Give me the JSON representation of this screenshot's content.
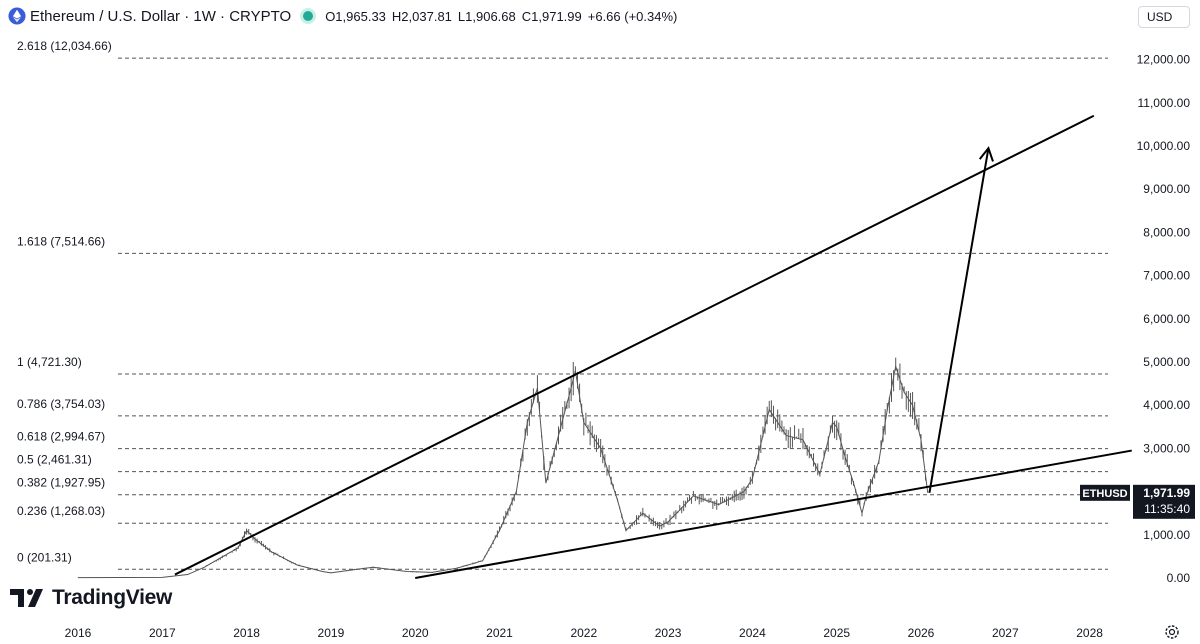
{
  "header": {
    "title": "Ethereum / U.S. Dollar · 1W · CRYPTO",
    "open": "O1,965.33",
    "high": "H2,037.81",
    "low": "L1,906.68",
    "close": "C1,971.99",
    "change": "+6.66 (+0.34%)",
    "currency": "USD",
    "icon": "ethereum-icon"
  },
  "watermark": {
    "text": "TradingView",
    "icon": "tradingview-logo"
  },
  "price_tag": {
    "symbol": "ETHUSD",
    "price": "1,971.99",
    "countdown": "11:35:40"
  },
  "colors": {
    "up": "#22ab94",
    "line": "#000000",
    "candle": "#555555",
    "price_tag_bg": "#131722"
  },
  "chart_data": {
    "type": "line",
    "title": "Ethereum / U.S. Dollar · 1W · CRYPTO",
    "xlabel": "",
    "ylabel": "",
    "x_ticks": [
      "2016",
      "2017",
      "2018",
      "2019",
      "2020",
      "2021",
      "2022",
      "2023",
      "2024",
      "2025",
      "2026",
      "2027",
      "2028"
    ],
    "y_ticks": [
      "0.00",
      "1,000.00",
      "2,000.00",
      "3,000.00",
      "4,000.00",
      "5,000.00",
      "6,000.00",
      "7,000.00",
      "8,000.00",
      "9,000.00",
      "10,000.00",
      "11,000.00",
      "12,000.00"
    ],
    "ylim": [
      0,
      12034.66
    ],
    "xlim": [
      2016.0,
      2028.3
    ],
    "fib_levels": [
      {
        "label": "2.618 (12,034.66)",
        "value": 12034.66
      },
      {
        "label": "1.618 (7,514.66)",
        "value": 7514.66
      },
      {
        "label": "1 (4,721.30)",
        "value": 4721.3
      },
      {
        "label": "0.786 (3,754.03)",
        "value": 3754.03
      },
      {
        "label": "0.618 (2,994.67)",
        "value": 2994.67
      },
      {
        "label": "0.5 (2,461.31)",
        "value": 2461.31
      },
      {
        "label": "0.382 (1,927.95)",
        "value": 1927.95
      },
      {
        "label": "0.236 (1,268.03)",
        "value": 1268.03
      },
      {
        "label": "0 (201.31)",
        "value": 201.31
      }
    ],
    "series": [
      {
        "x": [
          2016.0,
          2016.5,
          2017.0,
          2017.3,
          2017.5,
          2017.9,
          2018.0,
          2018.1,
          2018.3,
          2018.6,
          2018.9,
          2019.0,
          2019.3,
          2019.5,
          2019.9,
          2020.2,
          2020.5,
          2020.8,
          2021.0,
          2021.2,
          2021.33,
          2021.45,
          2021.55,
          2021.7,
          2021.85,
          2021.9,
          2022.0,
          2022.2,
          2022.4,
          2022.5,
          2022.7,
          2022.9,
          2023.0,
          2023.3,
          2023.6,
          2023.9,
          2024.0,
          2024.2,
          2024.4,
          2024.6,
          2024.8,
          2024.95,
          2025.0,
          2025.1,
          2025.2,
          2025.3,
          2025.35,
          2025.5,
          2025.6,
          2025.7,
          2025.8,
          2025.9,
          2026.0,
          2026.08
        ],
        "y": [
          10,
          12,
          15,
          80,
          250,
          700,
          1100,
          900,
          600,
          300,
          150,
          120,
          200,
          250,
          150,
          130,
          230,
          400,
          1100,
          2000,
          3600,
          4400,
          2200,
          3300,
          4400,
          4800,
          3600,
          3000,
          1800,
          1100,
          1500,
          1200,
          1300,
          1900,
          1700,
          2000,
          2300,
          3900,
          3300,
          3200,
          2400,
          3600,
          3500,
          2800,
          2200,
          1500,
          1900,
          2700,
          3900,
          4900,
          4300,
          4000,
          3200,
          1972
        ]
      }
    ],
    "annotations": [
      {
        "type": "trendline",
        "label": "upper-wedge-line",
        "x": [
          2017.15,
          2028.05
        ],
        "y": [
          80,
          10700
        ]
      },
      {
        "type": "trendline",
        "label": "lower-wedge-line",
        "x": [
          2020.0,
          2028.5
        ],
        "y": [
          0,
          2950
        ]
      },
      {
        "type": "arrow",
        "label": "target-projection-arrow",
        "x": [
          2026.1,
          2026.8
        ],
        "y": [
          1972,
          9950
        ]
      }
    ]
  }
}
